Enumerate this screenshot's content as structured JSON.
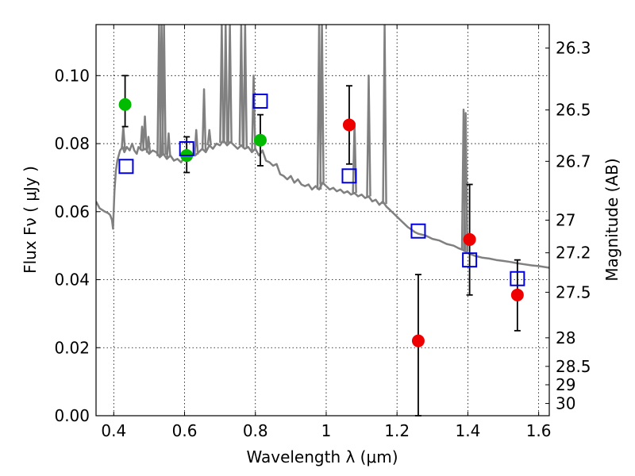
{
  "chart_data": {
    "type": "scatter",
    "xlabel": "Wavelength  λ (μm)",
    "ylabel": "Flux  Fν  ( μJy )",
    "ylabel_right": "Magnitude (AB)",
    "xlim": [
      0.35,
      1.63
    ],
    "ylim": [
      0.0,
      0.115
    ],
    "grid": true,
    "x_ticks": [
      0.4,
      0.6,
      0.8,
      1.0,
      1.2,
      1.4,
      1.6
    ],
    "x_tick_labels": [
      "0.4",
      "0.6",
      "0.8",
      "1",
      "1.2",
      "1.4",
      "1.6"
    ],
    "y_ticks": [
      0.0,
      0.02,
      0.04,
      0.06,
      0.08,
      0.1
    ],
    "y_tick_labels": [
      "0.00",
      "0.02",
      "0.04",
      "0.06",
      "0.08",
      "0.10"
    ],
    "right_ticks": [
      {
        "label": "26.3",
        "flux": 0.1081
      },
      {
        "label": "26.5",
        "flux": 0.0899
      },
      {
        "label": "26.7",
        "flux": 0.0748
      },
      {
        "label": "27",
        "flux": 0.0575
      },
      {
        "label": "27.2",
        "flux": 0.0479
      },
      {
        "label": "27.5",
        "flux": 0.0363
      },
      {
        "label": "28",
        "flux": 0.0229
      },
      {
        "label": "28.5",
        "flux": 0.0145
      },
      {
        "label": "29",
        "flux": 0.0091
      },
      {
        "label": "30",
        "flux": 0.0036
      }
    ],
    "series": [
      {
        "marker": "circle",
        "color": "#00bb00",
        "points": [
          {
            "x": 0.432,
            "y": 0.0915,
            "err_lo": 0.0065,
            "err_hi": 0.0085
          },
          {
            "x": 0.606,
            "y": 0.0765,
            "err_lo": 0.005,
            "err_hi": 0.0055
          },
          {
            "x": 0.814,
            "y": 0.081,
            "err_lo": 0.0075,
            "err_hi": 0.0075
          }
        ]
      },
      {
        "marker": "circle",
        "color": "#ee0000",
        "points": [
          {
            "x": 1.065,
            "y": 0.0855,
            "err_lo": 0.0115,
            "err_hi": 0.0115
          },
          {
            "x": 1.26,
            "y": 0.022,
            "err_lo": 0.022,
            "err_hi": 0.0195
          },
          {
            "x": 1.405,
            "y": 0.0518,
            "err_lo": 0.0163,
            "err_hi": 0.0162
          },
          {
            "x": 1.54,
            "y": 0.0355,
            "err_lo": 0.0105,
            "err_hi": 0.0103
          }
        ]
      },
      {
        "marker": "square",
        "color": "#0000dd",
        "points": [
          {
            "x": 0.435,
            "y": 0.0733
          },
          {
            "x": 0.606,
            "y": 0.0785
          },
          {
            "x": 0.814,
            "y": 0.0925
          },
          {
            "x": 1.065,
            "y": 0.0705
          },
          {
            "x": 1.26,
            "y": 0.0543
          },
          {
            "x": 1.405,
            "y": 0.0458
          },
          {
            "x": 1.54,
            "y": 0.0403
          }
        ]
      }
    ],
    "sed_curve": {
      "color": "#808080",
      "points": [
        [
          0.35,
          0.063
        ],
        [
          0.36,
          0.061
        ],
        [
          0.375,
          0.06
        ],
        [
          0.385,
          0.0595
        ],
        [
          0.39,
          0.059
        ],
        [
          0.395,
          0.0575
        ],
        [
          0.398,
          0.055
        ],
        [
          0.402,
          0.066
        ],
        [
          0.406,
          0.072
        ],
        [
          0.41,
          0.075
        ],
        [
          0.418,
          0.078
        ],
        [
          0.425,
          0.079
        ],
        [
          0.43,
          0.0775
        ],
        [
          0.437,
          0.079
        ],
        [
          0.445,
          0.078
        ],
        [
          0.452,
          0.08
        ],
        [
          0.458,
          0.078
        ],
        [
          0.465,
          0.077
        ],
        [
          0.47,
          0.079
        ],
        [
          0.48,
          0.078
        ],
        [
          0.49,
          0.0785
        ],
        [
          0.5,
          0.077
        ],
        [
          0.51,
          0.078
        ],
        [
          0.52,
          0.0775
        ],
        [
          0.53,
          0.076
        ],
        [
          0.54,
          0.077
        ],
        [
          0.55,
          0.0755
        ],
        [
          0.56,
          0.0765
        ],
        [
          0.57,
          0.075
        ],
        [
          0.58,
          0.0755
        ],
        [
          0.59,
          0.0745
        ],
        [
          0.6,
          0.076
        ],
        [
          0.61,
          0.0755
        ],
        [
          0.62,
          0.077
        ],
        [
          0.63,
          0.0765
        ],
        [
          0.64,
          0.0775
        ],
        [
          0.65,
          0.0785
        ],
        [
          0.66,
          0.0775
        ],
        [
          0.67,
          0.0795
        ],
        [
          0.68,
          0.0785
        ],
        [
          0.69,
          0.08
        ],
        [
          0.7,
          0.0795
        ],
        [
          0.71,
          0.081
        ],
        [
          0.72,
          0.0795
        ],
        [
          0.73,
          0.0805
        ],
        [
          0.74,
          0.0795
        ],
        [
          0.75,
          0.0785
        ],
        [
          0.76,
          0.0795
        ],
        [
          0.77,
          0.0785
        ],
        [
          0.78,
          0.079
        ],
        [
          0.79,
          0.0775
        ],
        [
          0.8,
          0.0785
        ],
        [
          0.81,
          0.0765
        ],
        [
          0.82,
          0.078
        ],
        [
          0.83,
          0.075
        ],
        [
          0.84,
          0.0745
        ],
        [
          0.85,
          0.0735
        ],
        [
          0.86,
          0.074
        ],
        [
          0.87,
          0.071
        ],
        [
          0.88,
          0.0705
        ],
        [
          0.89,
          0.0695
        ],
        [
          0.9,
          0.0705
        ],
        [
          0.91,
          0.0685
        ],
        [
          0.92,
          0.0695
        ],
        [
          0.93,
          0.068
        ],
        [
          0.94,
          0.0675
        ],
        [
          0.95,
          0.068
        ],
        [
          0.96,
          0.0665
        ],
        [
          0.97,
          0.0675
        ],
        [
          0.98,
          0.0665
        ],
        [
          0.99,
          0.0685
        ],
        [
          1.0,
          0.0675
        ],
        [
          1.01,
          0.0665
        ],
        [
          1.02,
          0.067
        ],
        [
          1.03,
          0.066
        ],
        [
          1.04,
          0.0665
        ],
        [
          1.05,
          0.0655
        ],
        [
          1.06,
          0.066
        ],
        [
          1.07,
          0.065
        ],
        [
          1.08,
          0.0655
        ],
        [
          1.09,
          0.0645
        ],
        [
          1.1,
          0.065
        ],
        [
          1.11,
          0.064
        ],
        [
          1.12,
          0.0645
        ],
        [
          1.13,
          0.063
        ],
        [
          1.14,
          0.0635
        ],
        [
          1.15,
          0.062
        ],
        [
          1.16,
          0.063
        ],
        [
          1.17,
          0.0615
        ],
        [
          1.18,
          0.0605
        ],
        [
          1.19,
          0.0595
        ],
        [
          1.2,
          0.0585
        ],
        [
          1.21,
          0.0575
        ],
        [
          1.22,
          0.0565
        ],
        [
          1.23,
          0.0555
        ],
        [
          1.24,
          0.0548
        ],
        [
          1.25,
          0.054
        ],
        [
          1.26,
          0.0535
        ],
        [
          1.28,
          0.053
        ],
        [
          1.3,
          0.052
        ],
        [
          1.32,
          0.0515
        ],
        [
          1.34,
          0.0505
        ],
        [
          1.36,
          0.05
        ],
        [
          1.375,
          0.0492
        ],
        [
          1.385,
          0.0488
        ],
        [
          1.39,
          0.0485
        ],
        [
          1.4,
          0.0478
        ],
        [
          1.42,
          0.047
        ],
        [
          1.44,
          0.0465
        ],
        [
          1.46,
          0.0462
        ],
        [
          1.48,
          0.0458
        ],
        [
          1.5,
          0.0455
        ],
        [
          1.52,
          0.0452
        ],
        [
          1.54,
          0.0448
        ],
        [
          1.56,
          0.0445
        ],
        [
          1.58,
          0.0442
        ],
        [
          1.6,
          0.044
        ],
        [
          1.63,
          0.0435
        ]
      ],
      "emission_lines": [
        {
          "x": 0.427,
          "peak": 0.085
        },
        {
          "x": 0.48,
          "peak": 0.085
        },
        {
          "x": 0.488,
          "peak": 0.088
        },
        {
          "x": 0.498,
          "peak": 0.082
        },
        {
          "x": 0.528,
          "peak": 0.115
        },
        {
          "x": 0.535,
          "peak": 0.115
        },
        {
          "x": 0.542,
          "peak": 0.115
        },
        {
          "x": 0.555,
          "peak": 0.083
        },
        {
          "x": 0.633,
          "peak": 0.084
        },
        {
          "x": 0.655,
          "peak": 0.096
        },
        {
          "x": 0.67,
          "peak": 0.084
        },
        {
          "x": 0.705,
          "peak": 0.115
        },
        {
          "x": 0.716,
          "peak": 0.115
        },
        {
          "x": 0.728,
          "peak": 0.115
        },
        {
          "x": 0.76,
          "peak": 0.115
        },
        {
          "x": 0.771,
          "peak": 0.115
        },
        {
          "x": 0.795,
          "peak": 0.1
        },
        {
          "x": 0.98,
          "peak": 0.115
        },
        {
          "x": 0.988,
          "peak": 0.115
        },
        {
          "x": 1.08,
          "peak": 0.086
        },
        {
          "x": 1.12,
          "peak": 0.1
        },
        {
          "x": 1.165,
          "peak": 0.115
        },
        {
          "x": 1.388,
          "peak": 0.09
        },
        {
          "x": 1.394,
          "peak": 0.089
        }
      ]
    }
  }
}
